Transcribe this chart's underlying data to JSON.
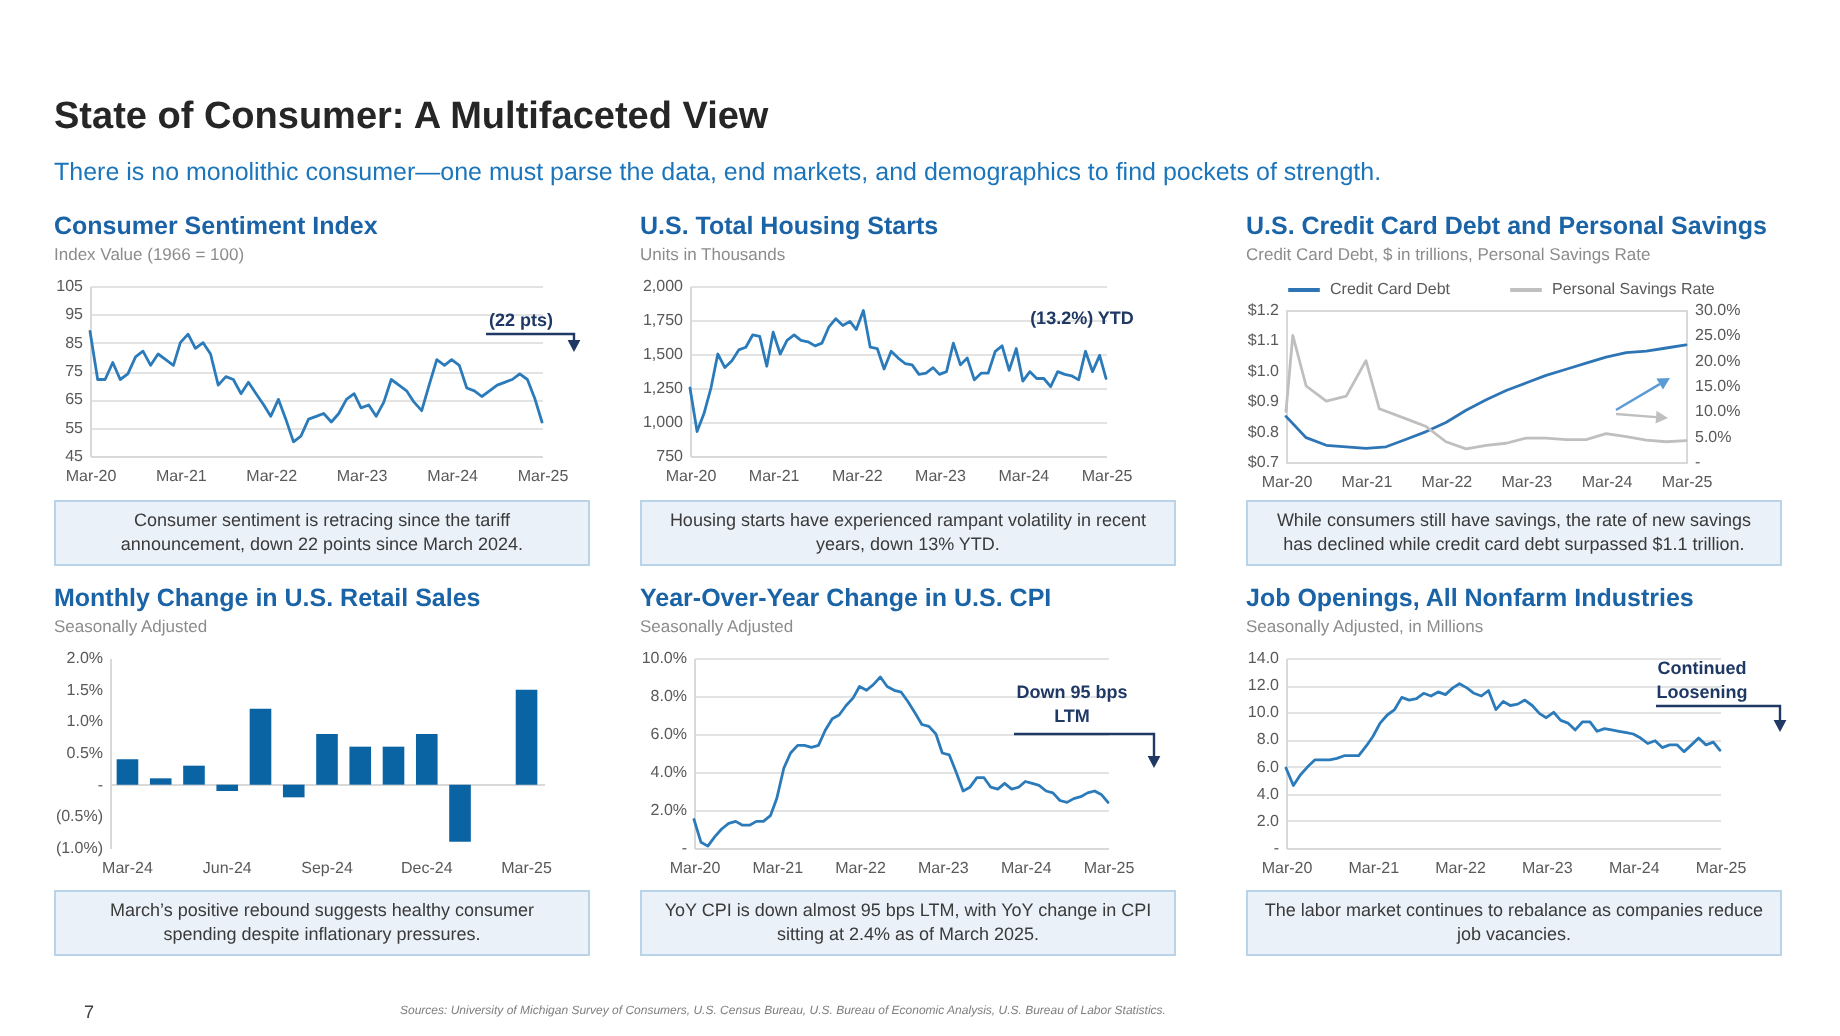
{
  "chart_data": [
    {
      "type": "other",
      "title": "State of Consumer: A Multifaceted View",
      "subtitle": "There is no monolithic consumer—one must parse the data, end markets, and demographics to find pockets of strength.",
      "annotations": [
        "7",
        "Sources: University of Michigan Survey of Consumers, U.S. Census Bureau, U.S. Bureau of Economic Analysis, U.S. Bureau of Labor Statistics."
      ]
    },
    {
      "type": "line",
      "title": "Consumer Sentiment Index",
      "subtitle": "Index Value (1966 = 100)",
      "color": "#2b7bba",
      "grid": "y",
      "x": [
        "2020-03",
        "2020-04",
        "2020-05",
        "2020-06",
        "2020-07",
        "2020-08",
        "2020-09",
        "2020-10",
        "2020-11",
        "2020-12",
        "2021-01",
        "2021-02",
        "2021-03",
        "2021-04",
        "2021-05",
        "2021-06",
        "2021-07",
        "2021-08",
        "2021-09",
        "2021-10",
        "2021-11",
        "2021-12",
        "2022-01",
        "2022-02",
        "2022-03",
        "2022-04",
        "2022-05",
        "2022-06",
        "2022-07",
        "2022-08",
        "2022-09",
        "2022-10",
        "2022-11",
        "2022-12",
        "2023-01",
        "2023-02",
        "2023-03",
        "2023-04",
        "2023-05",
        "2023-06",
        "2023-07",
        "2023-08",
        "2023-09",
        "2023-10",
        "2023-11",
        "2023-12",
        "2024-01",
        "2024-02",
        "2024-03",
        "2024-04",
        "2024-05",
        "2024-06",
        "2024-07",
        "2024-08",
        "2024-09",
        "2024-10",
        "2024-11",
        "2024-12",
        "2025-01",
        "2025-02",
        "2025-03"
      ],
      "values": [
        89,
        72,
        72,
        78,
        72,
        74,
        80,
        82,
        77,
        81,
        79,
        77,
        85,
        88,
        83,
        85,
        81,
        70,
        73,
        72,
        67,
        71,
        67,
        63,
        59,
        65,
        58,
        50,
        52,
        58,
        59,
        60,
        57,
        60,
        65,
        67,
        62,
        63,
        59,
        64,
        72,
        70,
        68,
        64,
        61,
        70,
        79,
        77,
        79,
        77,
        69,
        68,
        66,
        68,
        70,
        71,
        72,
        74,
        72,
        65,
        57
      ],
      "xlim": [
        "2020-03",
        "2025-03"
      ],
      "xticks": [
        {
          "value": "2020-03",
          "label": "Mar-20"
        },
        {
          "value": "2021-03",
          "label": "Mar-21"
        },
        {
          "value": "2022-03",
          "label": "Mar-22"
        },
        {
          "value": "2023-03",
          "label": "Mar-23"
        },
        {
          "value": "2024-03",
          "label": "Mar-24"
        },
        {
          "value": "2025-03",
          "label": "Mar-25"
        }
      ],
      "ylim": [
        45,
        105
      ],
      "yticks": [
        45,
        55,
        65,
        75,
        85,
        95,
        105
      ],
      "annotations": [
        "(22 pts)",
        "Consumer sentiment is retracing since the tariff announcement, down 22 points since March 2024."
      ]
    },
    {
      "type": "line",
      "title": "U.S. Total Housing Starts",
      "subtitle": "Units in Thousands",
      "color": "#2b7bba",
      "grid": "y",
      "x": [
        "2020-03",
        "2020-04",
        "2020-05",
        "2020-06",
        "2020-07",
        "2020-08",
        "2020-09",
        "2020-10",
        "2020-11",
        "2020-12",
        "2021-01",
        "2021-02",
        "2021-03",
        "2021-04",
        "2021-05",
        "2021-06",
        "2021-07",
        "2021-08",
        "2021-09",
        "2021-10",
        "2021-11",
        "2021-12",
        "2022-01",
        "2022-02",
        "2022-03",
        "2022-04",
        "2022-05",
        "2022-06",
        "2022-07",
        "2022-08",
        "2022-09",
        "2022-10",
        "2022-11",
        "2022-12",
        "2023-01",
        "2023-02",
        "2023-03",
        "2023-04",
        "2023-05",
        "2023-06",
        "2023-07",
        "2023-08",
        "2023-09",
        "2023-10",
        "2023-11",
        "2023-12",
        "2024-01",
        "2024-02",
        "2024-03",
        "2024-04",
        "2024-05",
        "2024-06",
        "2024-07",
        "2024-08",
        "2024-09",
        "2024-10",
        "2024-11",
        "2024-12",
        "2025-01",
        "2025-02",
        "2025-03"
      ],
      "values": [
        1250,
        930,
        1060,
        1250,
        1500,
        1400,
        1450,
        1530,
        1550,
        1640,
        1630,
        1410,
        1660,
        1500,
        1600,
        1640,
        1600,
        1590,
        1560,
        1580,
        1700,
        1760,
        1710,
        1740,
        1680,
        1820,
        1550,
        1540,
        1390,
        1520,
        1470,
        1430,
        1420,
        1350,
        1360,
        1400,
        1350,
        1370,
        1580,
        1420,
        1470,
        1310,
        1360,
        1360,
        1520,
        1560,
        1380,
        1540,
        1300,
        1370,
        1320,
        1320,
        1260,
        1370,
        1350,
        1340,
        1310,
        1520,
        1370,
        1490,
        1320
      ],
      "xlim": [
        "2020-03",
        "2025-03"
      ],
      "xticks": [
        {
          "value": "2020-03",
          "label": "Mar-20"
        },
        {
          "value": "2021-03",
          "label": "Mar-21"
        },
        {
          "value": "2022-03",
          "label": "Mar-22"
        },
        {
          "value": "2023-03",
          "label": "Mar-23"
        },
        {
          "value": "2024-03",
          "label": "Mar-24"
        },
        {
          "value": "2025-03",
          "label": "Mar-25"
        }
      ],
      "ylim": [
        750,
        2000
      ],
      "yticks": [
        750,
        {
          "value": 1000,
          "label": "1,000"
        },
        {
          "value": 1250,
          "label": "1,250"
        },
        {
          "value": 1500,
          "label": "1,500"
        },
        {
          "value": 1750,
          "label": "1,750"
        },
        {
          "value": 2000,
          "label": "2,000"
        }
      ],
      "annotations": [
        "(13.2%) YTD",
        "Housing starts have experienced rampant volatility in recent years, down 13% YTD."
      ]
    },
    {
      "type": "line",
      "title": "U.S. Credit Card Debt and Personal Savings",
      "subtitle": "Credit Card Debt, $ in trillions, Personal Savings Rate",
      "legend": "top",
      "series": [
        {
          "name": "Credit Card Debt",
          "color": "#2e75b6",
          "x": [
            "2020-03",
            "2020-06",
            "2020-09",
            "2020-12",
            "2021-03",
            "2021-06",
            "2021-09",
            "2021-12",
            "2022-03",
            "2022-06",
            "2022-09",
            "2022-12",
            "2023-03",
            "2023-06",
            "2023-09",
            "2023-12",
            "2024-03",
            "2024-06",
            "2024-09",
            "2024-12",
            "2025-03"
          ],
          "values": [
            0.85,
            0.78,
            0.755,
            0.75,
            0.745,
            0.75,
            0.775,
            0.8,
            0.83,
            0.87,
            0.905,
            0.935,
            0.96,
            0.985,
            1.005,
            1.025,
            1.045,
            1.06,
            1.065,
            1.075,
            1.085
          ]
        },
        {
          "name": "Personal Savings Rate",
          "color": "#bfbfbf",
          "axis": "y2",
          "x": [
            "2020-03",
            "2020-04",
            "2020-06",
            "2020-09",
            "2020-12",
            "2021-03",
            "2021-05",
            "2021-09",
            "2021-12",
            "2022-03",
            "2022-06",
            "2022-09",
            "2022-12",
            "2023-03",
            "2023-06",
            "2023-09",
            "2023-12",
            "2024-03",
            "2024-06",
            "2024-09",
            "2024-12",
            "2025-03"
          ],
          "values": [
            10,
            25,
            15,
            12,
            13,
            20,
            10.5,
            8.5,
            7,
            4,
            2.6,
            3.3,
            3.7,
            4.7,
            4.7,
            4.4,
            4.4,
            5.6,
            5,
            4.3,
            4,
            4.2
          ]
        }
      ],
      "xlim": [
        "2020-03",
        "2025-03"
      ],
      "xticks": [
        {
          "value": "2020-03",
          "label": "Mar-20"
        },
        {
          "value": "2021-03",
          "label": "Mar-21"
        },
        {
          "value": "2022-03",
          "label": "Mar-22"
        },
        {
          "value": "2023-03",
          "label": "Mar-23"
        },
        {
          "value": "2024-03",
          "label": "Mar-24"
        },
        {
          "value": "2025-03",
          "label": "Mar-25"
        }
      ],
      "ylim": [
        0.7,
        1.2
      ],
      "yticks": [
        {
          "value": 0.7,
          "label": "$0.7"
        },
        {
          "value": 0.8,
          "label": "$0.8"
        },
        {
          "value": 0.9,
          "label": "$0.9"
        },
        {
          "value": 1.0,
          "label": "$1.0"
        },
        {
          "value": 1.1,
          "label": "$1.1"
        },
        {
          "value": 1.2,
          "label": "$1.2"
        }
      ],
      "y2lim": [
        0,
        30
      ],
      "y2ticks": [
        {
          "value": 0,
          "label": "-"
        },
        {
          "value": 5,
          "label": "5.0%"
        },
        {
          "value": 10,
          "label": "10.0%"
        },
        {
          "value": 15,
          "label": "15.0%"
        },
        {
          "value": 20,
          "label": "20.0%"
        },
        {
          "value": 25,
          "label": "25.0%"
        },
        {
          "value": 30,
          "label": "30.0%"
        }
      ],
      "annotations": [
        "While consumers still have savings, the rate of new savings has declined while credit card debt surpassed $1.1 trillion."
      ]
    },
    {
      "type": "bar",
      "title": "Monthly Change in U.S. Retail Sales",
      "subtitle": "Seasonally Adjusted",
      "color": "#0a64a4",
      "categories": [
        "Mar-24",
        null,
        null,
        "Jun-24",
        null,
        null,
        "Sep-24",
        null,
        null,
        "Dec-24",
        null,
        null,
        "Mar-25"
      ],
      "values": [
        0.4,
        0.1,
        0.3,
        -0.1,
        1.2,
        -0.2,
        0.8,
        0.6,
        0.6,
        0.8,
        -0.9,
        null,
        1.5
      ],
      "ylim": [
        -1,
        2
      ],
      "yticks": [
        {
          "value": -1,
          "label": "(1.0%)"
        },
        {
          "value": -0.5,
          "label": "(0.5%)"
        },
        {
          "value": 0,
          "label": "-"
        },
        {
          "value": 0.5,
          "label": "0.5%"
        },
        {
          "value": 1,
          "label": "1.0%"
        },
        {
          "value": 1.5,
          "label": "1.5%"
        },
        {
          "value": 2,
          "label": "2.0%"
        }
      ],
      "annotations": [
        "March’s positive rebound suggests healthy consumer spending despite inflationary pressures."
      ]
    },
    {
      "type": "line",
      "title": "Year-Over-Year Change in U.S. CPI",
      "subtitle": "Seasonally Adjusted",
      "color": "#2b7bba",
      "grid": "y",
      "x": [
        "2020-03",
        "2020-04",
        "2020-05",
        "2020-06",
        "2020-07",
        "2020-08",
        "2020-09",
        "2020-10",
        "2020-11",
        "2020-12",
        "2021-01",
        "2021-02",
        "2021-03",
        "2021-04",
        "2021-05",
        "2021-06",
        "2021-07",
        "2021-08",
        "2021-09",
        "2021-10",
        "2021-11",
        "2021-12",
        "2022-01",
        "2022-02",
        "2022-03",
        "2022-04",
        "2022-05",
        "2022-06",
        "2022-07",
        "2022-08",
        "2022-09",
        "2022-10",
        "2022-11",
        "2022-12",
        "2023-01",
        "2023-02",
        "2023-03",
        "2023-04",
        "2023-05",
        "2023-06",
        "2023-07",
        "2023-08",
        "2023-09",
        "2023-10",
        "2023-11",
        "2023-12",
        "2024-01",
        "2024-02",
        "2024-03",
        "2024-04",
        "2024-05",
        "2024-06",
        "2024-07",
        "2024-08",
        "2024-09",
        "2024-10",
        "2024-11",
        "2024-12",
        "2025-01",
        "2025-02",
        "2025-03"
      ],
      "values": [
        1.5,
        0.3,
        0.1,
        0.6,
        1.0,
        1.3,
        1.4,
        1.2,
        1.2,
        1.4,
        1.4,
        1.7,
        2.6,
        4.2,
        5.0,
        5.4,
        5.4,
        5.3,
        5.4,
        6.2,
        6.8,
        7.0,
        7.5,
        7.9,
        8.5,
        8.3,
        8.6,
        9.0,
        8.5,
        8.3,
        8.2,
        7.7,
        7.1,
        6.5,
        6.4,
        6.0,
        5.0,
        4.9,
        4.0,
        3.0,
        3.2,
        3.7,
        3.7,
        3.2,
        3.1,
        3.4,
        3.1,
        3.2,
        3.5,
        3.4,
        3.3,
        3.0,
        2.9,
        2.5,
        2.4,
        2.6,
        2.7,
        2.9,
        3.0,
        2.8,
        2.4
      ],
      "xlim": [
        "2020-03",
        "2025-03"
      ],
      "xticks": [
        {
          "value": "2020-03",
          "label": "Mar-20"
        },
        {
          "value": "2021-03",
          "label": "Mar-21"
        },
        {
          "value": "2022-03",
          "label": "Mar-22"
        },
        {
          "value": "2023-03",
          "label": "Mar-23"
        },
        {
          "value": "2024-03",
          "label": "Mar-24"
        },
        {
          "value": "2025-03",
          "label": "Mar-25"
        }
      ],
      "ylim": [
        0,
        10
      ],
      "yticks": [
        {
          "value": 0,
          "label": "-"
        },
        {
          "value": 2,
          "label": "2.0%"
        },
        {
          "value": 4,
          "label": "4.0%"
        },
        {
          "value": 6,
          "label": "6.0%"
        },
        {
          "value": 8,
          "label": "8.0%"
        },
        {
          "value": 10,
          "label": "10.0%"
        }
      ],
      "annotations": [
        "Down 95 bps LTM",
        "YoY CPI is down almost 95 bps LTM, with YoY change in CPI sitting at 2.4% as of March 2025."
      ]
    },
    {
      "type": "line",
      "title": "Job Openings, All Nonfarm Industries",
      "subtitle": "Seasonally Adjusted, in Millions",
      "color": "#2b7bba",
      "grid": "y",
      "x": [
        "2020-03",
        "2020-04",
        "2020-05",
        "2020-06",
        "2020-07",
        "2020-08",
        "2020-09",
        "2020-10",
        "2020-11",
        "2020-12",
        "2021-01",
        "2021-02",
        "2021-03",
        "2021-04",
        "2021-05",
        "2021-06",
        "2021-07",
        "2021-08",
        "2021-09",
        "2021-10",
        "2021-11",
        "2021-12",
        "2022-01",
        "2022-02",
        "2022-03",
        "2022-04",
        "2022-05",
        "2022-06",
        "2022-07",
        "2022-08",
        "2022-09",
        "2022-10",
        "2022-11",
        "2022-12",
        "2023-01",
        "2023-02",
        "2023-03",
        "2023-04",
        "2023-05",
        "2023-06",
        "2023-07",
        "2023-08",
        "2023-09",
        "2023-10",
        "2023-11",
        "2023-12",
        "2024-01",
        "2024-02",
        "2024-03",
        "2024-04",
        "2024-05",
        "2024-06",
        "2024-07",
        "2024-08",
        "2024-09",
        "2024-10",
        "2024-11",
        "2024-12",
        "2025-01",
        "2025-02",
        "2025-03"
      ],
      "values": [
        5.9,
        4.6,
        5.4,
        6.0,
        6.5,
        6.5,
        6.5,
        6.6,
        6.8,
        6.8,
        6.8,
        7.5,
        8.2,
        9.2,
        9.8,
        10.2,
        11.1,
        10.9,
        11.0,
        11.4,
        11.2,
        11.5,
        11.3,
        11.8,
        12.1,
        11.8,
        11.4,
        11.2,
        11.6,
        10.2,
        10.8,
        10.5,
        10.6,
        10.9,
        10.5,
        9.9,
        9.6,
        10.0,
        9.4,
        9.2,
        8.7,
        9.3,
        9.3,
        8.6,
        8.8,
        8.7,
        8.6,
        8.5,
        8.4,
        8.1,
        7.7,
        7.9,
        7.4,
        7.6,
        7.6,
        7.1,
        7.6,
        8.1,
        7.6,
        7.8,
        7.2
      ],
      "xlim": [
        "2020-03",
        "2025-03"
      ],
      "xticks": [
        {
          "value": "2020-03",
          "label": "Mar-20"
        },
        {
          "value": "2021-03",
          "label": "Mar-21"
        },
        {
          "value": "2022-03",
          "label": "Mar-22"
        },
        {
          "value": "2023-03",
          "label": "Mar-23"
        },
        {
          "value": "2024-03",
          "label": "Mar-24"
        },
        {
          "value": "2025-03",
          "label": "Mar-25"
        }
      ],
      "ylim": [
        0,
        14
      ],
      "yticks": [
        {
          "value": 0,
          "label": "-"
        },
        {
          "value": 2,
          "label": "2.0"
        },
        {
          "value": 4,
          "label": "4.0"
        },
        {
          "value": 6,
          "label": "6.0"
        },
        {
          "value": 8,
          "label": "8.0"
        },
        {
          "value": 10,
          "label": "10.0"
        },
        {
          "value": 12,
          "label": "12.0"
        },
        {
          "value": 14,
          "label": "14.0"
        }
      ],
      "annotations": [
        "Continued Loosening",
        "The labor market continues to rebalance as companies reduce job vacancies."
      ]
    }
  ]
}
